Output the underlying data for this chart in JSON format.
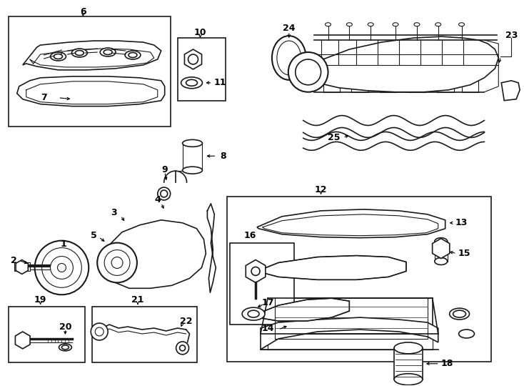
{
  "bg_color": "#ffffff",
  "line_color": "#1a1a1a",
  "fig_width": 7.34,
  "fig_height": 5.4,
  "dpi": 100,
  "label_fontsize": 9,
  "label_fontweight": "bold"
}
